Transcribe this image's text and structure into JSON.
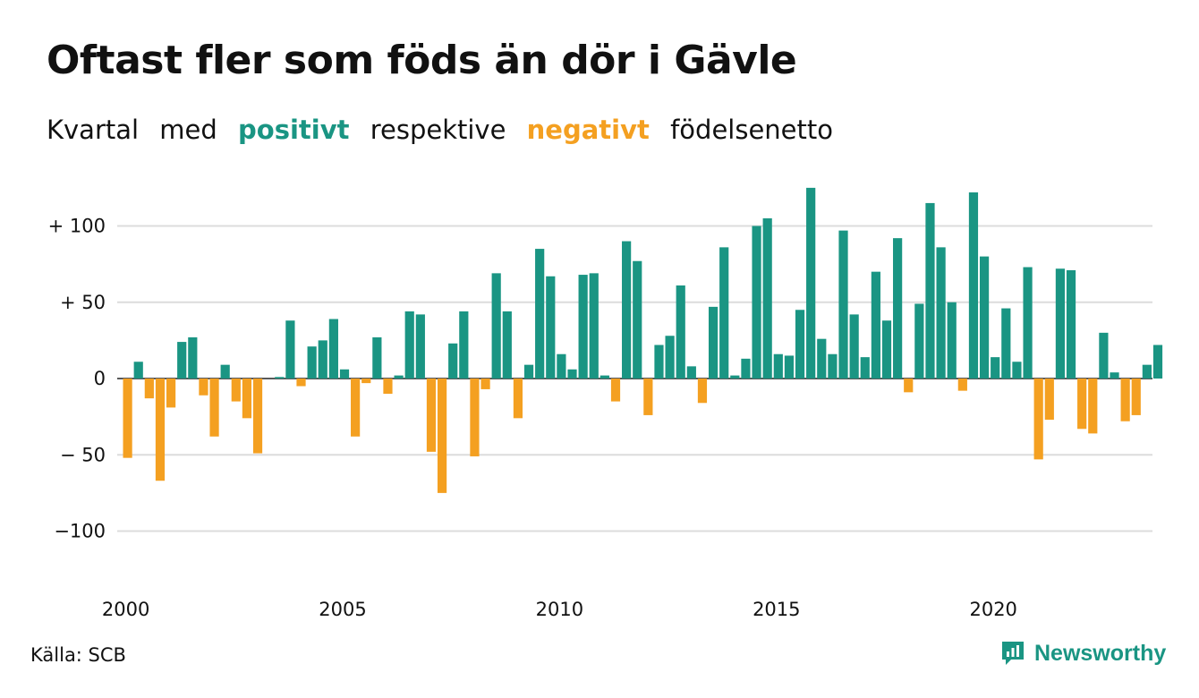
{
  "title": "Oftast fler som föds än dör i Gävle",
  "subtitle": {
    "w1": "Kvartal",
    "w2": "med",
    "positive": "positivt",
    "w3": "respektive",
    "negative": "negativt",
    "w4": "födelsenetto"
  },
  "source": "Källa: SCB",
  "brand": "Newsworthy",
  "colors": {
    "positive": "#1a9583",
    "negative": "#f4a021",
    "grid": "#dcdcdc",
    "text": "#111111"
  },
  "chart_data": {
    "type": "bar",
    "x_start": "2000 Q1",
    "frequency": "quarterly",
    "y_ticks": [
      {
        "value": 100,
        "label": "+ 100"
      },
      {
        "value": 50,
        "label": "+  50"
      },
      {
        "value": 0,
        "label": "0"
      },
      {
        "value": -50,
        "label": "− 50"
      },
      {
        "value": -100,
        "label": "−100"
      }
    ],
    "x_ticks": [
      {
        "year": 2000,
        "label": "2000"
      },
      {
        "year": 2005,
        "label": "2005"
      },
      {
        "year": 2010,
        "label": "2010"
      },
      {
        "year": 2015,
        "label": "2015"
      },
      {
        "year": 2020,
        "label": "2020"
      }
    ],
    "ylim": [
      -120,
      125
    ],
    "grid": true,
    "values": [
      -52,
      11,
      -13,
      -67,
      -19,
      24,
      27,
      -11,
      -38,
      9,
      -15,
      -26,
      -49,
      0,
      1,
      38,
      -5,
      21,
      25,
      39,
      6,
      -38,
      -3,
      27,
      -10,
      2,
      44,
      42,
      -48,
      -75,
      23,
      44,
      -51,
      -7,
      69,
      44,
      -26,
      9,
      85,
      67,
      16,
      6,
      68,
      69,
      2,
      -15,
      90,
      77,
      -24,
      22,
      28,
      61,
      8,
      -16,
      47,
      86,
      2,
      13,
      100,
      105,
      16,
      15,
      45,
      125,
      26,
      16,
      97,
      42,
      14,
      70,
      38,
      92,
      -9,
      49,
      115,
      86,
      50,
      -8,
      122,
      80,
      14,
      46,
      11,
      73,
      -53,
      -27,
      72,
      71,
      -33,
      -36,
      30,
      4,
      -28,
      -24,
      9,
      22
    ]
  }
}
